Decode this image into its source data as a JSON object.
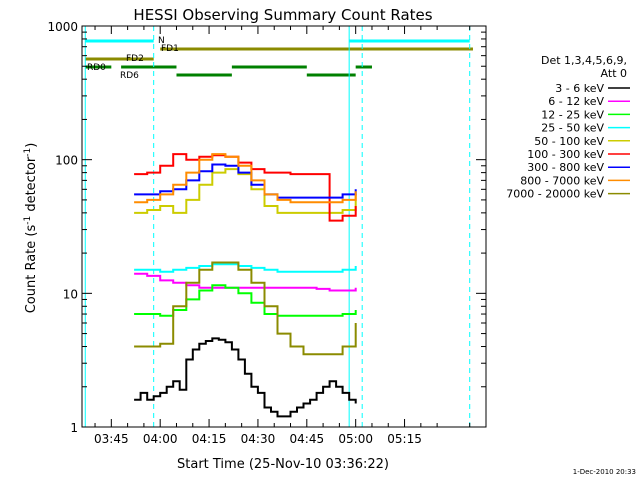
{
  "chart_data": {
    "type": "line",
    "title": "HESSI Observing Summary Count Rates",
    "xlabel": "Start Time (25-Nov-10 03:36:22)",
    "ylabel_main": "Count Rate (s",
    "ylabel_sup1": "-1",
    "ylabel_mid": " detector",
    "ylabel_sup2": "-1",
    "ylabel_end": ")",
    "footer": "1-Dec-2010 20:33",
    "y_scale": "log",
    "ylim": [
      1,
      1000
    ],
    "xlim_min": [
      216,
      340
    ],
    "y_ticks": [
      {
        "value": 1,
        "label": "1"
      },
      {
        "value": 10,
        "label": "10"
      },
      {
        "value": 100,
        "label": "100"
      },
      {
        "value": 1000,
        "label": "1000"
      }
    ],
    "x_ticks": [
      {
        "value": 225,
        "label": "03:45"
      },
      {
        "value": 240,
        "label": "04:00"
      },
      {
        "value": 255,
        "label": "04:15"
      },
      {
        "value": 270,
        "label": "04:30"
      },
      {
        "value": 285,
        "label": "04:45"
      },
      {
        "value": 300,
        "label": "05:00"
      },
      {
        "value": 315,
        "label": "05:15"
      }
    ],
    "legend": {
      "header1": "Det 1,3,4,5,6,9,",
      "header2": "Att 0",
      "placement": "right"
    },
    "series": [
      {
        "name": "3 - 6 keV",
        "color": "#000000",
        "x": [
          232,
          234,
          236,
          238,
          240,
          242,
          244,
          246,
          248,
          250,
          252,
          254,
          256,
          258,
          260,
          262,
          264,
          266,
          268,
          270,
          272,
          274,
          276,
          278,
          280,
          282,
          284,
          286,
          288,
          290,
          292,
          294,
          296,
          298,
          300
        ],
        "y": [
          1.6,
          1.8,
          1.6,
          1.7,
          1.8,
          2.0,
          2.2,
          1.9,
          3.2,
          3.8,
          4.2,
          4.4,
          4.6,
          4.5,
          4.3,
          3.8,
          3.2,
          2.5,
          2.0,
          1.8,
          1.4,
          1.3,
          1.2,
          1.2,
          1.3,
          1.4,
          1.5,
          1.6,
          1.8,
          2.0,
          2.2,
          2.0,
          1.8,
          1.6,
          1.5
        ]
      },
      {
        "name": "6 - 12 keV",
        "color": "#ff00ff",
        "x": [
          232,
          236,
          240,
          244,
          248,
          252,
          256,
          260,
          264,
          268,
          272,
          276,
          280,
          284,
          288,
          292,
          296,
          300
        ],
        "y": [
          14.0,
          13.5,
          12.5,
          12.0,
          11.5,
          11.0,
          11.0,
          11.0,
          11.0,
          11.0,
          11.0,
          11.0,
          11.0,
          11.0,
          10.8,
          10.5,
          10.5,
          11.0
        ]
      },
      {
        "name": "12 - 25 keV",
        "color": "#00ff00",
        "x": [
          232,
          236,
          240,
          244,
          248,
          252,
          256,
          260,
          264,
          268,
          272,
          276,
          280,
          284,
          288,
          292,
          296,
          300
        ],
        "y": [
          7.0,
          7.0,
          6.8,
          7.5,
          9.0,
          10.5,
          11.5,
          11.0,
          10.0,
          8.5,
          7.0,
          6.8,
          6.8,
          6.8,
          6.8,
          6.8,
          7.0,
          7.5
        ]
      },
      {
        "name": "25 - 50 keV",
        "color": "#00ffff",
        "x": [
          232,
          236,
          240,
          244,
          248,
          252,
          256,
          260,
          264,
          268,
          272,
          276,
          280,
          284,
          288,
          292,
          296,
          300
        ],
        "y": [
          15.0,
          15.0,
          14.5,
          15.0,
          15.5,
          16.0,
          16.5,
          16.5,
          16.0,
          15.5,
          15.0,
          14.5,
          14.5,
          14.5,
          14.5,
          14.5,
          15.0,
          16.0
        ]
      },
      {
        "name": "50 - 100 keV",
        "color": "#cccc00",
        "x": [
          232,
          236,
          240,
          244,
          248,
          252,
          256,
          260,
          264,
          268,
          272,
          276,
          280,
          284,
          288,
          292,
          296,
          300
        ],
        "y": [
          40.0,
          42.0,
          45.0,
          40.0,
          50.0,
          65.0,
          80.0,
          85.0,
          78.0,
          60.0,
          45.0,
          40.0,
          40.0,
          40.0,
          40.0,
          40.0,
          42.0,
          55.0
        ]
      },
      {
        "name": "100 - 300 keV",
        "color": "#ff0000",
        "x": [
          232,
          236,
          240,
          244,
          248,
          252,
          256,
          260,
          264,
          268,
          272,
          276,
          280,
          284,
          288,
          292,
          296,
          300
        ],
        "y": [
          78.0,
          80.0,
          90.0,
          110.0,
          100.0,
          105.0,
          108.0,
          105.0,
          95.0,
          85.0,
          80.0,
          80.0,
          78.0,
          78.0,
          78.0,
          35.0,
          38.0,
          45.0
        ]
      },
      {
        "name": "300 - 800 keV",
        "color": "#0000ff",
        "x": [
          232,
          236,
          240,
          244,
          248,
          252,
          256,
          260,
          264,
          268,
          272,
          276,
          280,
          284,
          288,
          292,
          296,
          300
        ],
        "y": [
          55.0,
          55.0,
          58.0,
          60.0,
          70.0,
          82.0,
          92.0,
          90.0,
          80.0,
          65.0,
          55.0,
          52.0,
          52.0,
          52.0,
          52.0,
          52.0,
          55.0,
          60.0
        ]
      },
      {
        "name": "800 - 7000 keV",
        "color": "#ff8c00",
        "x": [
          232,
          236,
          240,
          244,
          248,
          252,
          256,
          260,
          264,
          268,
          272,
          276,
          280,
          284,
          288,
          292,
          296,
          300
        ],
        "y": [
          48.0,
          50.0,
          55.0,
          65.0,
          80.0,
          100.0,
          110.0,
          105.0,
          90.0,
          70.0,
          55.0,
          50.0,
          48.0,
          48.0,
          48.0,
          48.0,
          50.0,
          58.0
        ]
      },
      {
        "name": "7000 - 20000 keV",
        "color": "#8b8b00",
        "x": [
          232,
          236,
          240,
          244,
          248,
          252,
          256,
          260,
          264,
          268,
          272,
          276,
          280,
          284,
          288,
          292,
          296,
          300
        ],
        "y": [
          4.0,
          4.0,
          4.2,
          8.0,
          12.0,
          15.0,
          17.0,
          17.0,
          15.0,
          12.0,
          8.0,
          5.0,
          4.0,
          3.5,
          3.5,
          3.5,
          4.0,
          6.0
        ]
      }
    ],
    "state_bars": [
      {
        "label": "N",
        "color": "#00ffff",
        "segments": [
          [
            217,
            238
          ],
          [
            298,
            335
          ]
        ]
      },
      {
        "label": "FD1",
        "color": "#8b8b00",
        "segments": [
          [
            240,
            336
          ]
        ]
      },
      {
        "label": "FD2",
        "color": "#8b8b00",
        "segments": [
          [
            217,
            238
          ]
        ]
      },
      {
        "label": "RD0",
        "color": "#008000",
        "segments": [
          [
            217,
            225
          ],
          [
            228,
            245
          ],
          [
            262,
            285
          ],
          [
            300,
            305
          ]
        ]
      },
      {
        "label": "RD6",
        "color": "#008000",
        "segments": [
          [
            245,
            262
          ],
          [
            285,
            300
          ]
        ]
      }
    ],
    "vlines": [
      {
        "x": 217,
        "color": "#00ffff",
        "style": "solid"
      },
      {
        "x": 238,
        "color": "#00ffff",
        "style": "dashed"
      },
      {
        "x": 298,
        "color": "#00ffff",
        "style": "solid"
      },
      {
        "x": 302,
        "color": "#00ffff",
        "style": "dashed"
      },
      {
        "x": 335,
        "color": "#00ffff",
        "style": "dashed"
      }
    ]
  }
}
